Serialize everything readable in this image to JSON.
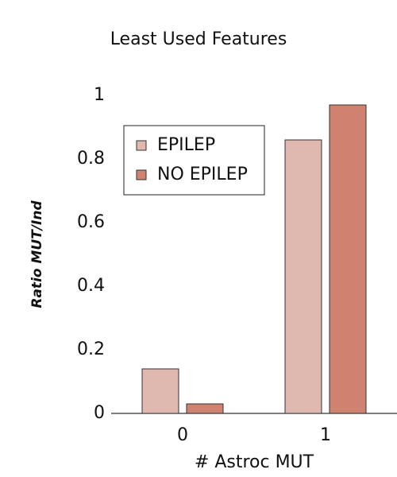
{
  "chart_data": {
    "type": "bar",
    "title": "Least Used Features",
    "xlabel": "# Astroc MUT",
    "ylabel": "Ratio MUT/Ind",
    "categories": [
      "0",
      "1"
    ],
    "series": [
      {
        "name": "EPILEP",
        "color": "#dfb9b0",
        "values": [
          0.14,
          0.86
        ]
      },
      {
        "name": "NO EPILEP",
        "color": "#cf8270",
        "values": [
          0.03,
          0.97
        ]
      }
    ],
    "ylim": [
      0,
      1
    ],
    "yticks": [
      0,
      0.2,
      0.4,
      0.6,
      0.8,
      1
    ],
    "grid": false,
    "legend": "upper left"
  }
}
